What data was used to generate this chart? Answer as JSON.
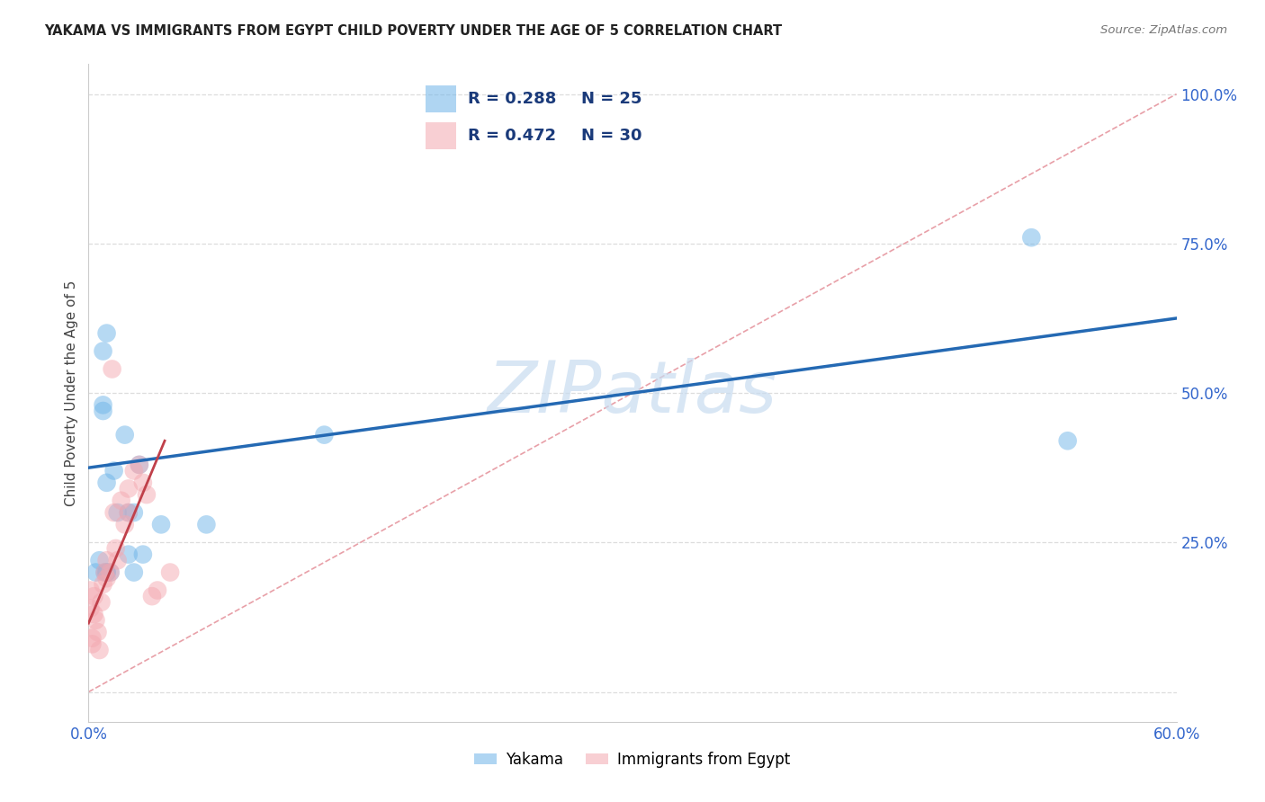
{
  "title": "YAKAMA VS IMMIGRANTS FROM EGYPT CHILD POVERTY UNDER THE AGE OF 5 CORRELATION CHART",
  "source": "Source: ZipAtlas.com",
  "ylabel": "Child Poverty Under the Age of 5",
  "xlim": [
    0.0,
    0.6
  ],
  "ylim": [
    -0.05,
    1.05
  ],
  "xticks": [
    0.0,
    0.1,
    0.2,
    0.3,
    0.4,
    0.5,
    0.6
  ],
  "xticklabels": [
    "0.0%",
    "",
    "",
    "",
    "",
    "",
    "60.0%"
  ],
  "yticks": [
    0.0,
    0.25,
    0.5,
    0.75,
    1.0
  ],
  "yticklabels": [
    "",
    "25.0%",
    "50.0%",
    "75.0%",
    "100.0%"
  ],
  "R_yakama": 0.288,
  "N_yakama": 25,
  "R_egypt": 0.472,
  "N_egypt": 30,
  "blue_color": "#6EB4E8",
  "pink_color": "#F4A8B0",
  "blue_line_color": "#2469B3",
  "pink_line_color": "#C0404A",
  "diag_color": "#E8A0A8",
  "watermark_color": "#C8DCF0",
  "legend_text_color": "#1A3A7A",
  "tick_color": "#3366CC",
  "yakama_x": [
    0.004,
    0.006,
    0.008,
    0.008,
    0.008,
    0.009,
    0.01,
    0.01,
    0.01,
    0.01,
    0.012,
    0.014,
    0.016,
    0.02,
    0.022,
    0.022,
    0.025,
    0.025,
    0.028,
    0.03,
    0.04,
    0.065,
    0.13,
    0.52,
    0.54
  ],
  "yakama_y": [
    0.2,
    0.22,
    0.47,
    0.48,
    0.57,
    0.2,
    0.6,
    0.2,
    0.2,
    0.35,
    0.2,
    0.37,
    0.3,
    0.43,
    0.3,
    0.23,
    0.2,
    0.3,
    0.38,
    0.23,
    0.28,
    0.28,
    0.43,
    0.76,
    0.42
  ],
  "egypt_x": [
    0.001,
    0.001,
    0.002,
    0.002,
    0.003,
    0.003,
    0.004,
    0.005,
    0.006,
    0.007,
    0.008,
    0.009,
    0.01,
    0.01,
    0.012,
    0.013,
    0.014,
    0.015,
    0.016,
    0.018,
    0.02,
    0.022,
    0.022,
    0.025,
    0.028,
    0.03,
    0.032,
    0.035,
    0.038,
    0.045
  ],
  "egypt_y": [
    0.14,
    0.17,
    0.08,
    0.09,
    0.13,
    0.16,
    0.12,
    0.1,
    0.07,
    0.15,
    0.18,
    0.2,
    0.19,
    0.22,
    0.2,
    0.54,
    0.3,
    0.24,
    0.22,
    0.32,
    0.28,
    0.3,
    0.34,
    0.37,
    0.38,
    0.35,
    0.33,
    0.16,
    0.17,
    0.2
  ],
  "yakama_line_x": [
    0.0,
    0.6
  ],
  "yakama_line_y": [
    0.375,
    0.625
  ],
  "egypt_line_x": [
    0.0,
    0.042
  ],
  "egypt_line_y": [
    0.115,
    0.42
  ],
  "diag_line_x": [
    0.0,
    0.6
  ],
  "diag_line_y": [
    0.0,
    1.0
  ]
}
